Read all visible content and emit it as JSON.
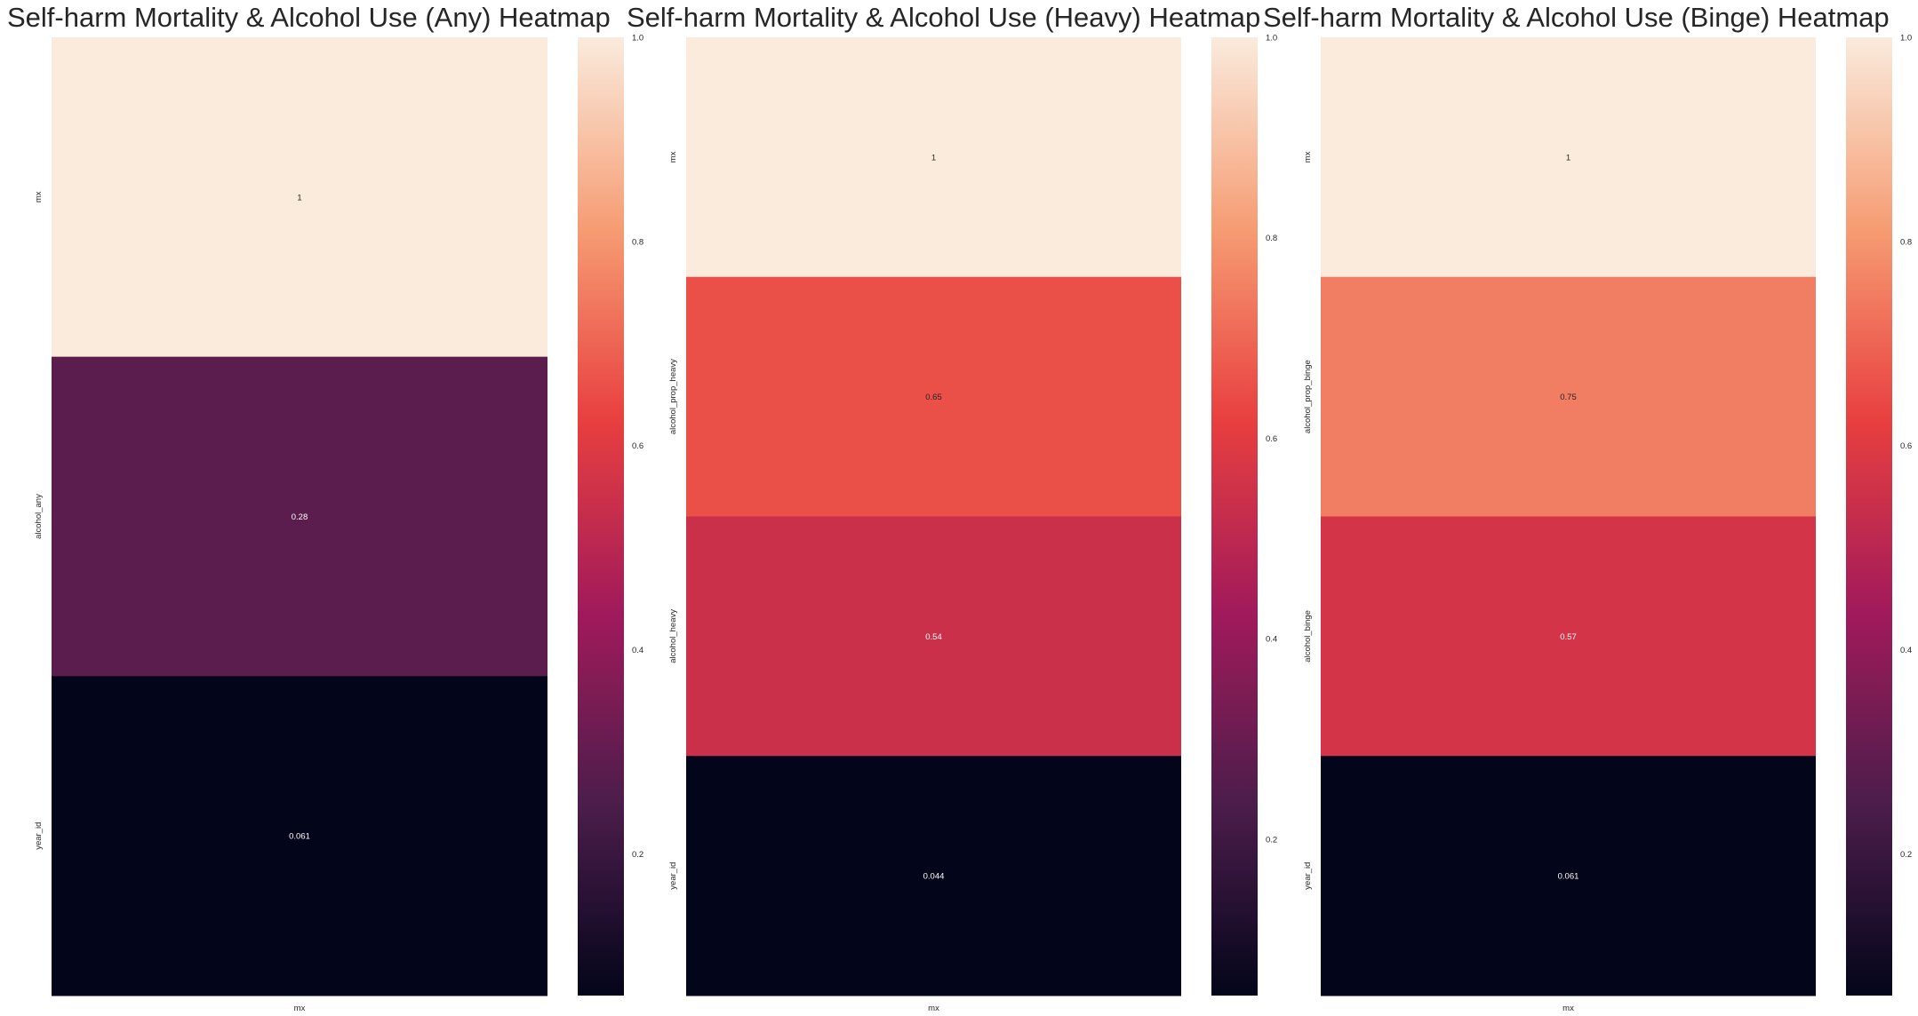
{
  "colormap_stops": [
    "#03051a",
    "#4c1d4b",
    "#a11a5b",
    "#e83f3f",
    "#f69c73",
    "#faebdd"
  ],
  "chart_data": [
    {
      "type": "heatmap",
      "title": "Self-harm Mortality & Alcohol Use (Any) Heatmap",
      "columns": [
        "mx"
      ],
      "rows": [
        "mx",
        "alcohol_any",
        "year_id"
      ],
      "values": [
        1,
        0.28,
        0.061
      ],
      "annotations": [
        "1",
        "0.28",
        "0.061"
      ],
      "vmin": 0.061,
      "vmax": 1,
      "colorbar_ticks": [
        "0.2",
        "0.4",
        "0.6",
        "0.8",
        "1.0"
      ]
    },
    {
      "type": "heatmap",
      "title": "Self-harm Mortality & Alcohol Use (Heavy) Heatmap",
      "columns": [
        "mx"
      ],
      "rows": [
        "mx",
        "alcohol_prop_heavy",
        "alcohol_heavy",
        "year_id"
      ],
      "values": [
        1,
        0.65,
        0.54,
        0.044
      ],
      "annotations": [
        "1",
        "0.65",
        "0.54",
        "0.044"
      ],
      "vmin": 0.044,
      "vmax": 1,
      "colorbar_ticks": [
        "0.2",
        "0.4",
        "0.6",
        "0.8",
        "1.0"
      ]
    },
    {
      "type": "heatmap",
      "title": "Self-harm Mortality & Alcohol Use (Binge) Heatmap",
      "columns": [
        "mx"
      ],
      "rows": [
        "mx",
        "alcohol_prop_binge",
        "alcohol_binge",
        "year_id"
      ],
      "values": [
        1,
        0.75,
        0.57,
        0.061
      ],
      "annotations": [
        "1",
        "0.75",
        "0.57",
        "0.061"
      ],
      "vmin": 0.061,
      "vmax": 1,
      "colorbar_ticks": [
        "0.2",
        "0.4",
        "0.6",
        "0.8",
        "1.0"
      ]
    }
  ]
}
